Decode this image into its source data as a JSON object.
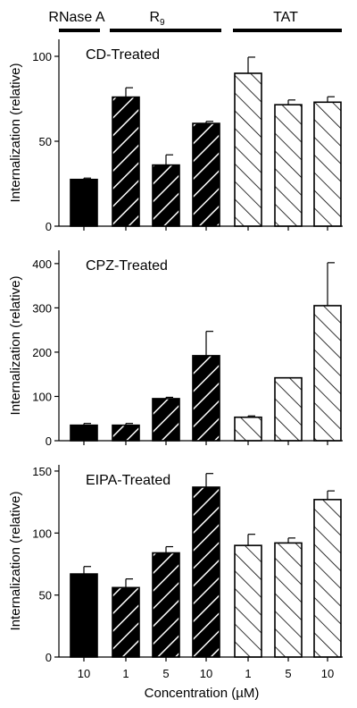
{
  "groups": [
    {
      "label": "RNase A",
      "sub": ""
    },
    {
      "label": "R",
      "sub": "9"
    },
    {
      "label": "TAT",
      "sub": ""
    }
  ],
  "categories": [
    "10",
    "1",
    "5",
    "10",
    "1",
    "5",
    "10"
  ],
  "bar_groups": [
    0,
    1,
    1,
    1,
    2,
    2,
    2
  ],
  "styles": {
    "solid": "#000000",
    "dark_hatch_line": "#ffffff",
    "light_hatch_line": "#000000",
    "light_fill": "#ffffff"
  },
  "xlabel": "Concentration (µM)",
  "chart_data": [
    {
      "type": "bar",
      "panel_label": "CD-Treated",
      "ylabel": "Internalization (relative)",
      "ylim": [
        0,
        110
      ],
      "yticks": [
        0,
        50,
        100
      ],
      "categories": [
        "10",
        "1",
        "5",
        "10",
        "1",
        "5",
        "10"
      ],
      "values": [
        27.5,
        76,
        36,
        60.5,
        90,
        71.5,
        73
      ],
      "errors": [
        0.8,
        5.5,
        6,
        1.2,
        9.5,
        2.8,
        3.2
      ]
    },
    {
      "type": "bar",
      "panel_label": "CPZ-Treated",
      "ylabel": "Internalization (relative)",
      "ylim": [
        0,
        430
      ],
      "yticks": [
        0,
        100,
        200,
        300,
        400
      ],
      "categories": [
        "10",
        "1",
        "5",
        "10",
        "1",
        "5",
        "10"
      ],
      "values": [
        35,
        35,
        95,
        192,
        53,
        142,
        305
      ],
      "errors": [
        4,
        4,
        3,
        55,
        3,
        0,
        97
      ]
    },
    {
      "type": "bar",
      "panel_label": "EIPA-Treated",
      "ylabel": "Internalization (relative)",
      "ylim": [
        0,
        155
      ],
      "yticks": [
        0,
        50,
        100,
        150
      ],
      "categories": [
        "10",
        "1",
        "5",
        "10",
        "1",
        "5",
        "10"
      ],
      "values": [
        67,
        56,
        84,
        137,
        90,
        92,
        127
      ],
      "errors": [
        6,
        7,
        5,
        11,
        9,
        4,
        7
      ]
    }
  ]
}
